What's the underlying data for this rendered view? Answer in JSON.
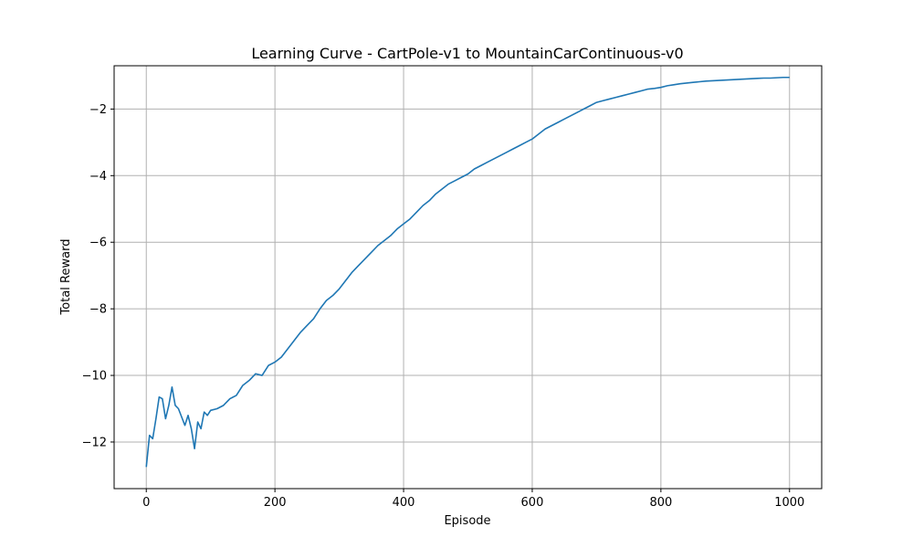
{
  "chart_data": {
    "type": "line",
    "title": "Learning Curve - CartPole-v1 to MountainCarContinuous-v0",
    "xlabel": "Episode",
    "ylabel": "Total Reward",
    "xlim": [
      -50,
      1050
    ],
    "ylim": [
      -13.4,
      -0.7
    ],
    "x_ticks": [
      0,
      200,
      400,
      600,
      800,
      1000
    ],
    "x_tick_labels": [
      "0",
      "200",
      "400",
      "600",
      "800",
      "1000"
    ],
    "y_ticks": [
      -12,
      -10,
      -8,
      -6,
      -4,
      -2
    ],
    "y_tick_labels": [
      "−12",
      "−10",
      "−8",
      "−6",
      "−4",
      "−2"
    ],
    "grid": true,
    "series": [
      {
        "color": "#1f77b4",
        "x": [
          0,
          5,
          10,
          15,
          20,
          25,
          30,
          35,
          40,
          45,
          50,
          55,
          60,
          65,
          70,
          75,
          80,
          85,
          90,
          95,
          100,
          110,
          120,
          130,
          140,
          150,
          160,
          170,
          180,
          190,
          200,
          210,
          220,
          230,
          240,
          250,
          260,
          270,
          280,
          290,
          300,
          310,
          320,
          330,
          340,
          350,
          360,
          370,
          380,
          390,
          400,
          410,
          420,
          430,
          440,
          450,
          460,
          470,
          480,
          490,
          500,
          510,
          520,
          530,
          540,
          550,
          560,
          570,
          580,
          590,
          600,
          610,
          620,
          630,
          640,
          650,
          660,
          670,
          680,
          690,
          700,
          710,
          720,
          730,
          740,
          750,
          760,
          770,
          780,
          790,
          800,
          810,
          820,
          830,
          840,
          850,
          860,
          870,
          880,
          890,
          900,
          910,
          920,
          930,
          940,
          950,
          960,
          970,
          980,
          990,
          1000
        ],
        "y": [
          -12.75,
          -11.8,
          -11.9,
          -11.3,
          -10.65,
          -10.7,
          -11.3,
          -10.9,
          -10.35,
          -10.9,
          -11.0,
          -11.25,
          -11.5,
          -11.2,
          -11.6,
          -12.2,
          -11.4,
          -11.6,
          -11.1,
          -11.2,
          -11.05,
          -11.0,
          -10.9,
          -10.7,
          -10.6,
          -10.3,
          -10.15,
          -9.95,
          -10.0,
          -9.7,
          -9.6,
          -9.45,
          -9.2,
          -8.95,
          -8.7,
          -8.5,
          -8.3,
          -8.0,
          -7.75,
          -7.6,
          -7.4,
          -7.15,
          -6.9,
          -6.7,
          -6.5,
          -6.3,
          -6.1,
          -5.95,
          -5.8,
          -5.6,
          -5.45,
          -5.3,
          -5.1,
          -4.9,
          -4.75,
          -4.55,
          -4.4,
          -4.25,
          -4.15,
          -4.05,
          -3.95,
          -3.8,
          -3.7,
          -3.6,
          -3.5,
          -3.4,
          -3.3,
          -3.2,
          -3.1,
          -3.0,
          -2.9,
          -2.75,
          -2.6,
          -2.5,
          -2.4,
          -2.3,
          -2.2,
          -2.1,
          -2.0,
          -1.9,
          -1.8,
          -1.75,
          -1.7,
          -1.65,
          -1.6,
          -1.55,
          -1.5,
          -1.45,
          -1.4,
          -1.38,
          -1.35,
          -1.3,
          -1.27,
          -1.24,
          -1.22,
          -1.2,
          -1.18,
          -1.16,
          -1.15,
          -1.14,
          -1.13,
          -1.12,
          -1.11,
          -1.1,
          -1.09,
          -1.08,
          -1.07,
          -1.07,
          -1.06,
          -1.05,
          -1.05
        ]
      }
    ]
  }
}
